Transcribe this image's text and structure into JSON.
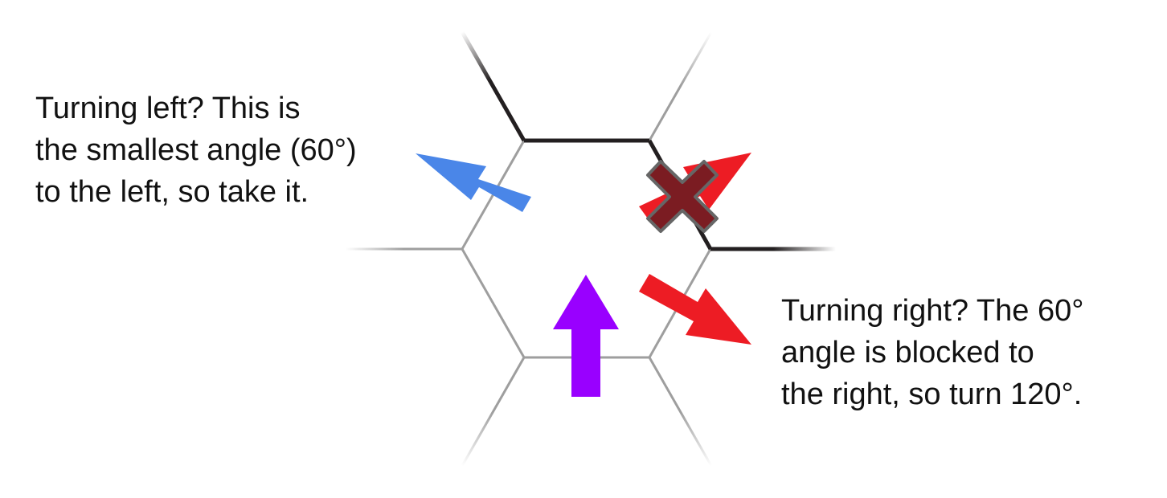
{
  "captions": {
    "left": {
      "lines": [
        "Turning left? This is",
        "the smallest angle (60°)",
        "to the left, so take it."
      ]
    },
    "right": {
      "lines": [
        "Turning right? The 60°",
        "angle is blocked to",
        "the right, so turn 120°."
      ]
    }
  },
  "colors": {
    "grid_line": "#9e9e9e",
    "wall_line": "#231f20",
    "left_arrow": "#4a86e8",
    "forward_arrow": "#9900ff",
    "right_arrow": "#ed1c24",
    "blocked_marker": "#7b1c22",
    "blocked_marker_outline": "#666666"
  },
  "icons": {
    "left_arrow": "arrow-up-left",
    "forward_arrow": "arrow-up",
    "right_blocked_arrow": "arrow-up-right",
    "right_taken_arrow": "arrow-down-right",
    "blocked_marker": "x-mark"
  }
}
